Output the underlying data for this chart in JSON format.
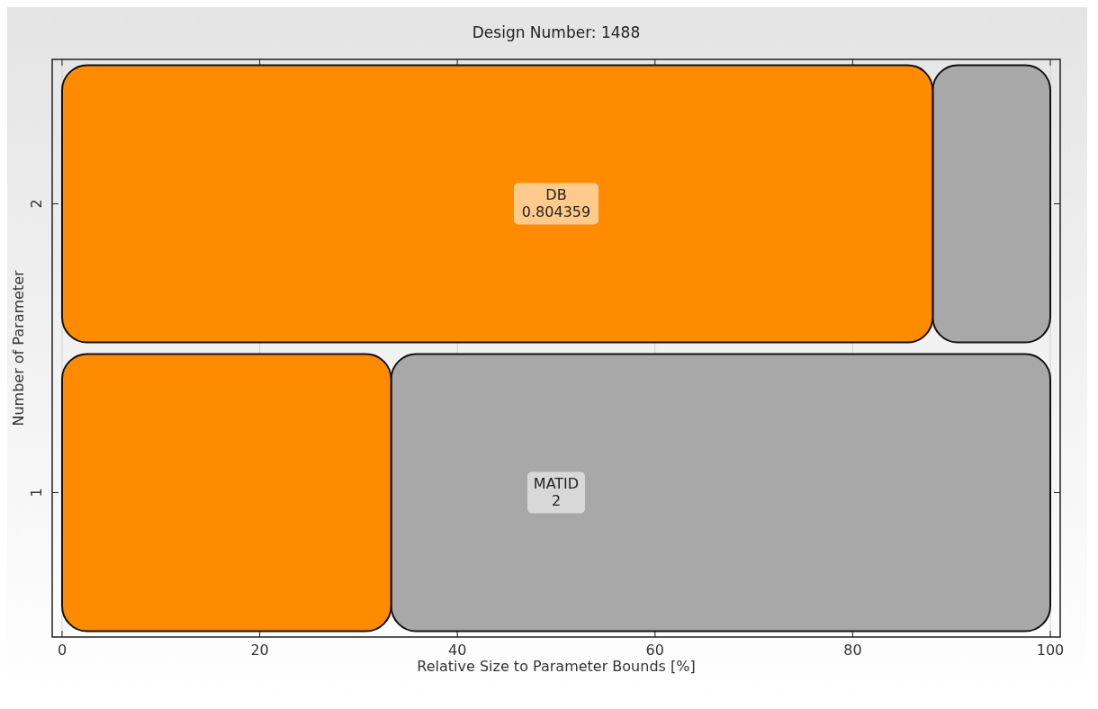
{
  "chart_data": {
    "type": "bar",
    "orientation": "horizontal",
    "stacked": true,
    "title": "Design Number: 1488",
    "xlabel": "Relative Size to Parameter Bounds [%]",
    "ylabel": "Number of Parameter",
    "categories": [
      "2",
      "1"
    ],
    "series": [
      {
        "color": "#ff8c00",
        "values": [
          88.1,
          33.3
        ]
      },
      {
        "color": "#a8a8a8",
        "values": [
          11.9,
          66.7
        ]
      }
    ],
    "xlim": [
      -1,
      101
    ],
    "xticks": [
      0,
      20,
      40,
      60,
      80,
      100
    ],
    "grid": true,
    "annotations": [
      "DB\n0.804359",
      "MATID\n2"
    ]
  }
}
